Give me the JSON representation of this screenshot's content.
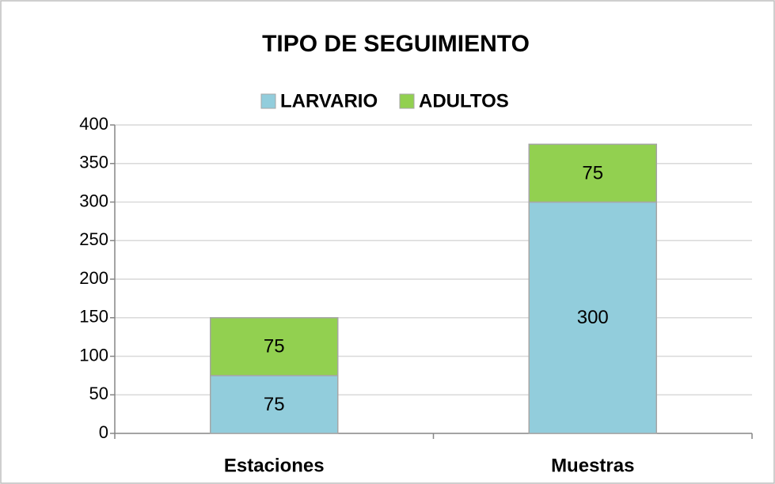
{
  "chart_data": {
    "type": "stacked_bar",
    "title": "TIPO DE SEGUIMIENTO",
    "categories": [
      "Estaciones",
      "Muestras"
    ],
    "series": [
      {
        "name": "LARVARIO",
        "color": "#92cddc",
        "values": [
          75,
          300
        ]
      },
      {
        "name": "ADULTOS",
        "color": "#92d050",
        "values": [
          75,
          75
        ]
      }
    ],
    "ylim": [
      0,
      400
    ],
    "yticks": [
      0,
      50,
      100,
      150,
      200,
      250,
      300,
      350,
      400
    ],
    "grid": true,
    "legend": "top"
  }
}
